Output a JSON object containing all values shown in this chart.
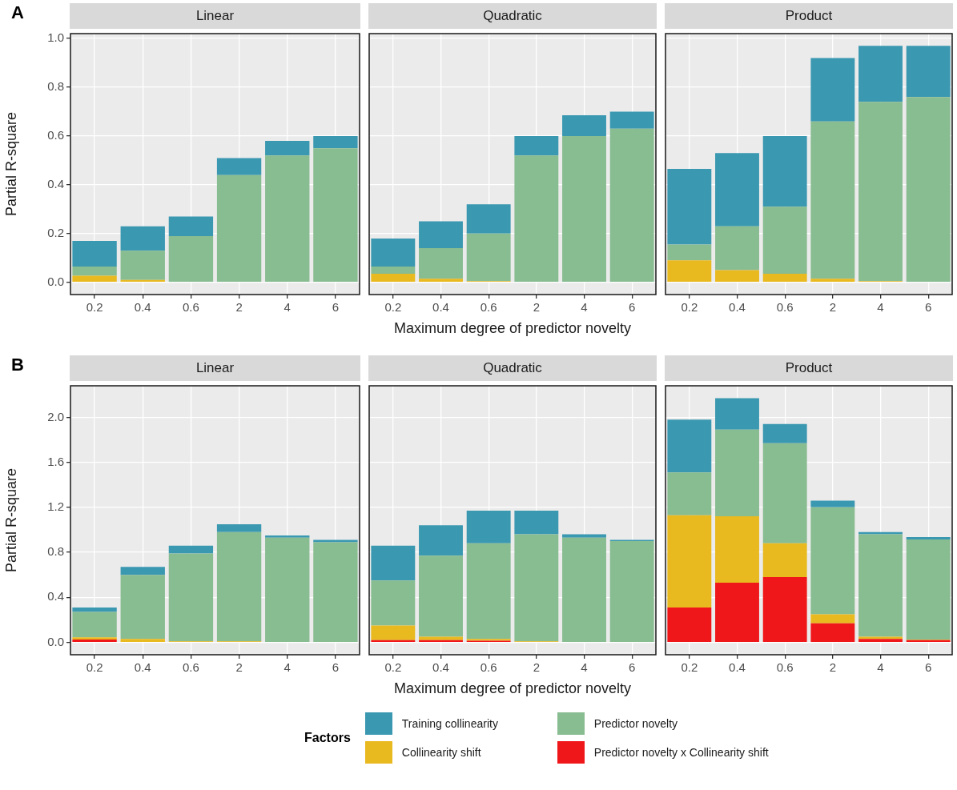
{
  "chart_data": [
    {
      "type": "bar",
      "stacked": true,
      "title": "Linear",
      "annotations": [
        "A"
      ],
      "ylabel": "Partial R-square",
      "categories": [
        "0.2",
        "0.4",
        "0.6",
        "2",
        "4",
        "6"
      ],
      "ylim": [
        -0.05,
        1.02
      ],
      "yticks": [
        {
          "value": 0,
          "label": "0.0"
        },
        {
          "value": 0.2,
          "label": "0.2"
        },
        {
          "value": 0.4,
          "label": "0.4"
        },
        {
          "value": 0.6,
          "label": "0.6"
        },
        {
          "value": 0.8,
          "label": "0.8"
        },
        {
          "value": 1,
          "label": "1.0"
        }
      ],
      "grid": true,
      "series": [
        {
          "color": "#e9b920",
          "values": [
            0.027,
            0.01,
            0,
            0,
            0,
            0
          ]
        },
        {
          "color": "#88bc91",
          "values": [
            0.038,
            0.12,
            0.19,
            0.44,
            0.52,
            0.55
          ]
        },
        {
          "color": "#3a98b1",
          "values": [
            0.105,
            0.1,
            0.08,
            0.07,
            0.06,
            0.05
          ]
        }
      ]
    },
    {
      "type": "bar",
      "stacked": true,
      "title": "Quadratic",
      "xlabel": "Maximum degree of predictor novelty",
      "tick_labels": "x",
      "categories": [
        "0.2",
        "0.4",
        "0.6",
        "2",
        "4",
        "6"
      ],
      "ylim": [
        -0.05,
        1.02
      ],
      "yticks": [
        0,
        0.2,
        0.4,
        0.6,
        0.8,
        1
      ],
      "grid": true,
      "series": [
        {
          "color": "#e9b920",
          "values": [
            0.035,
            0.015,
            0.005,
            0,
            0,
            0
          ]
        },
        {
          "color": "#88bc91",
          "values": [
            0.03,
            0.125,
            0.195,
            0.52,
            0.6,
            0.63
          ]
        },
        {
          "color": "#3a98b1",
          "values": [
            0.115,
            0.11,
            0.12,
            0.08,
            0.085,
            0.07
          ]
        }
      ]
    },
    {
      "type": "bar",
      "stacked": true,
      "title": "Product",
      "tick_labels": "x",
      "categories": [
        "0.2",
        "0.4",
        "0.6",
        "2",
        "4",
        "6"
      ],
      "ylim": [
        -0.05,
        1.02
      ],
      "yticks": [
        0,
        0.2,
        0.4,
        0.6,
        0.8,
        1
      ],
      "grid": true,
      "series": [
        {
          "color": "#e9b920",
          "values": [
            0.09,
            0.05,
            0.035,
            0.015,
            0.005,
            0
          ]
        },
        {
          "color": "#88bc91",
          "values": [
            0.065,
            0.18,
            0.275,
            0.645,
            0.735,
            0.76
          ]
        },
        {
          "color": "#3a98b1",
          "values": [
            0.31,
            0.3,
            0.29,
            0.26,
            0.23,
            0.21
          ]
        }
      ]
    },
    {
      "type": "bar",
      "stacked": true,
      "title": "Linear",
      "annotations": [
        "B"
      ],
      "ylabel": "Partial R-square",
      "categories": [
        "0.2",
        "0.4",
        "0.6",
        "2",
        "4",
        "6"
      ],
      "ylim": [
        -0.11,
        2.28
      ],
      "yticks": [
        {
          "value": 0,
          "label": "0.0"
        },
        {
          "value": 0.4,
          "label": "0.4"
        },
        {
          "value": 0.8,
          "label": "0.8"
        },
        {
          "value": 1.2,
          "label": "1.2"
        },
        {
          "value": 1.6,
          "label": "1.6"
        },
        {
          "value": 2,
          "label": "2.0"
        }
      ],
      "grid": true,
      "series": [
        {
          "color": "#f0171b",
          "values": [
            0.025,
            0,
            0,
            0,
            0,
            0
          ]
        },
        {
          "color": "#e9b920",
          "values": [
            0.02,
            0.03,
            0.01,
            0.01,
            0,
            0
          ]
        },
        {
          "color": "#88bc91",
          "values": [
            0.225,
            0.57,
            0.78,
            0.97,
            0.93,
            0.89
          ]
        },
        {
          "color": "#3a98b1",
          "values": [
            0.04,
            0.07,
            0.07,
            0.07,
            0.02,
            0.02
          ]
        }
      ]
    },
    {
      "type": "bar",
      "stacked": true,
      "title": "Quadratic",
      "xlabel": "Maximum degree of predictor novelty",
      "tick_labels": "x",
      "categories": [
        "0.2",
        "0.4",
        "0.6",
        "2",
        "4",
        "6"
      ],
      "ylim": [
        -0.11,
        2.28
      ],
      "yticks": [
        0,
        0.4,
        0.8,
        1.2,
        1.6,
        2
      ],
      "grid": true,
      "series": [
        {
          "color": "#f0171b",
          "values": [
            0.02,
            0.02,
            0.015,
            0,
            0,
            0
          ]
        },
        {
          "color": "#e9b920",
          "values": [
            0.13,
            0.03,
            0.015,
            0.01,
            0,
            0
          ]
        },
        {
          "color": "#88bc91",
          "values": [
            0.4,
            0.72,
            0.85,
            0.95,
            0.93,
            0.9
          ]
        },
        {
          "color": "#3a98b1",
          "values": [
            0.31,
            0.27,
            0.29,
            0.21,
            0.03,
            0.01
          ]
        }
      ]
    },
    {
      "type": "bar",
      "stacked": true,
      "title": "Product",
      "tick_labels": "x",
      "legend": "bottom",
      "legend_title": "Factors",
      "categories": [
        "0.2",
        "0.4",
        "0.6",
        "2",
        "4",
        "6"
      ],
      "ylim": [
        -0.11,
        2.28
      ],
      "yticks": [
        0,
        0.4,
        0.8,
        1.2,
        1.6,
        2
      ],
      "grid": true,
      "series": [
        {
          "name": "Predictor novelty x Collinearity shift",
          "color": "#f0171b",
          "values": [
            0.31,
            0.53,
            0.58,
            0.17,
            0.03,
            0.02
          ]
        },
        {
          "name": "Collinearity shift",
          "color": "#e9b920",
          "values": [
            0.82,
            0.59,
            0.3,
            0.08,
            0.02,
            0.005
          ]
        },
        {
          "name": "Predictor novelty",
          "color": "#88bc91",
          "values": [
            0.38,
            0.77,
            0.89,
            0.95,
            0.91,
            0.89
          ]
        },
        {
          "name": "Training collinearity",
          "color": "#3a98b1",
          "values": [
            0.47,
            0.28,
            0.17,
            0.06,
            0.02,
            0.02
          ]
        }
      ]
    }
  ]
}
